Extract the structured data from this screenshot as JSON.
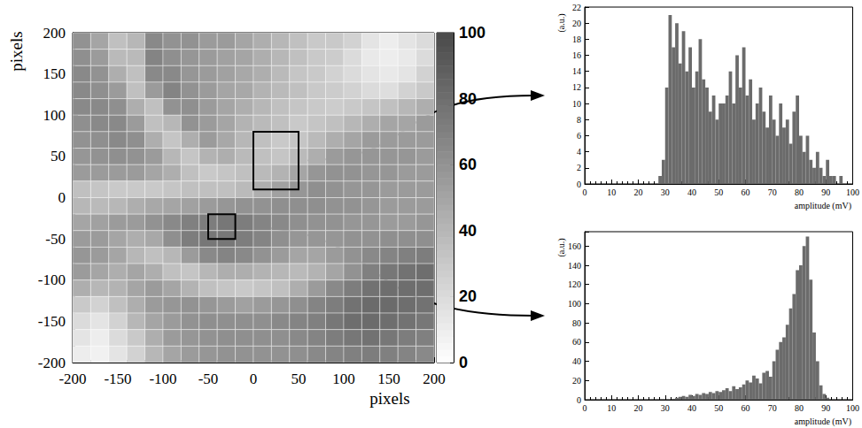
{
  "chart_data": [
    {
      "type": "heatmap",
      "x_label": "pixels",
      "y_label": "pixels",
      "xlim": [
        -200,
        200
      ],
      "xticks": [
        -200,
        -150,
        -100,
        -50,
        0,
        50,
        100,
        150,
        200
      ],
      "ylim": [
        -200,
        200
      ],
      "yticks": [
        -200,
        -150,
        -100,
        -50,
        0,
        50,
        100,
        150,
        200
      ],
      "colorbar_range": [
        0,
        100
      ],
      "colorbar_ticks": [
        0,
        20,
        40,
        60,
        80,
        100
      ],
      "x": [
        -190,
        -170,
        -150,
        -130,
        -110,
        -90,
        -70,
        -50,
        -30,
        -10,
        10,
        30,
        50,
        70,
        90,
        110,
        130,
        150,
        170,
        190
      ],
      "y": [
        190,
        170,
        150,
        130,
        110,
        90,
        70,
        50,
        30,
        10,
        -10,
        -30,
        -50,
        -70,
        -90,
        -110,
        -130,
        -150,
        -170,
        -190
      ],
      "z": [
        [
          60,
          50,
          35,
          40,
          65,
          60,
          60,
          55,
          55,
          50,
          45,
          40,
          35,
          30,
          30,
          25,
          15,
          10,
          15,
          20
        ],
        [
          62,
          55,
          38,
          38,
          68,
          62,
          58,
          55,
          52,
          50,
          45,
          40,
          35,
          30,
          28,
          20,
          12,
          10,
          12,
          20
        ],
        [
          65,
          60,
          45,
          35,
          65,
          65,
          58,
          55,
          52,
          48,
          45,
          38,
          32,
          30,
          25,
          20,
          15,
          12,
          15,
          25
        ],
        [
          65,
          62,
          55,
          35,
          55,
          68,
          60,
          55,
          50,
          48,
          42,
          38,
          35,
          30,
          28,
          25,
          20,
          18,
          25,
          30
        ],
        [
          65,
          65,
          62,
          45,
          35,
          60,
          62,
          55,
          50,
          45,
          40,
          35,
          32,
          30,
          28,
          30,
          32,
          35,
          40,
          45
        ],
        [
          62,
          65,
          65,
          55,
          35,
          40,
          60,
          55,
          50,
          42,
          38,
          35,
          30,
          32,
          35,
          40,
          45,
          50,
          50,
          55
        ],
        [
          60,
          62,
          65,
          62,
          45,
          32,
          45,
          55,
          48,
          40,
          35,
          30,
          32,
          38,
          45,
          50,
          55,
          55,
          55,
          55
        ],
        [
          58,
          60,
          62,
          60,
          55,
          40,
          32,
          42,
          45,
          38,
          35,
          32,
          38,
          45,
          55,
          58,
          58,
          58,
          58,
          55
        ],
        [
          55,
          55,
          55,
          55,
          50,
          45,
          35,
          30,
          32,
          35,
          38,
          42,
          50,
          58,
          60,
          60,
          58,
          58,
          55,
          55
        ],
        [
          35,
          32,
          30,
          30,
          30,
          32,
          35,
          35,
          35,
          38,
          45,
          52,
          58,
          62,
          60,
          58,
          58,
          55,
          55,
          55
        ],
        [
          40,
          38,
          40,
          45,
          48,
          50,
          52,
          55,
          58,
          60,
          60,
          62,
          62,
          62,
          60,
          60,
          58,
          55,
          55,
          55
        ],
        [
          50,
          52,
          55,
          55,
          60,
          65,
          70,
          72,
          75,
          72,
          68,
          65,
          62,
          60,
          60,
          58,
          58,
          55,
          55,
          58
        ],
        [
          55,
          55,
          50,
          45,
          48,
          62,
          72,
          75,
          75,
          72,
          68,
          62,
          58,
          58,
          58,
          60,
          60,
          62,
          62,
          62
        ],
        [
          58,
          55,
          50,
          40,
          35,
          40,
          55,
          65,
          68,
          65,
          60,
          55,
          50,
          50,
          55,
          60,
          65,
          68,
          70,
          72
        ],
        [
          55,
          50,
          45,
          50,
          45,
          35,
          32,
          40,
          45,
          45,
          42,
          40,
          38,
          42,
          50,
          60,
          70,
          75,
          78,
          80
        ],
        [
          45,
          40,
          42,
          50,
          55,
          50,
          42,
          35,
          32,
          30,
          32,
          35,
          45,
          55,
          65,
          72,
          78,
          80,
          80,
          80
        ],
        [
          30,
          25,
          35,
          45,
          55,
          58,
          60,
          58,
          55,
          52,
          55,
          58,
          62,
          68,
          72,
          78,
          82,
          82,
          80,
          78
        ],
        [
          20,
          15,
          25,
          40,
          50,
          55,
          60,
          62,
          62,
          62,
          62,
          65,
          68,
          70,
          75,
          80,
          82,
          80,
          78,
          75
        ],
        [
          15,
          10,
          20,
          30,
          45,
          55,
          58,
          60,
          62,
          62,
          62,
          62,
          65,
          68,
          72,
          75,
          78,
          75,
          72,
          70
        ],
        [
          10,
          8,
          15,
          25,
          40,
          50,
          55,
          58,
          60,
          60,
          60,
          60,
          62,
          65,
          68,
          70,
          72,
          70,
          68,
          65
        ]
      ],
      "regions": [
        {
          "x": [
            0,
            50
          ],
          "y": [
            10,
            80
          ]
        },
        {
          "x": [
            -50,
            -20
          ],
          "y": [
            -50,
            -20
          ]
        }
      ]
    },
    {
      "type": "histogram",
      "x_label": "amplitude (mV)",
      "y_label": "(a.u.)",
      "color": "#6b6b6b",
      "xlim": [
        0,
        100
      ],
      "xticks": [
        0,
        10,
        20,
        30,
        40,
        50,
        60,
        70,
        80,
        90,
        100
      ],
      "ylim": [
        0,
        22
      ],
      "yticks": [
        0,
        2,
        4,
        6,
        8,
        10,
        12,
        14,
        16,
        18,
        20,
        22
      ],
      "bins": [
        0,
        1.25,
        2.5,
        3.75,
        5,
        6.25,
        7.5,
        8.75,
        10,
        11.25,
        12.5,
        13.75,
        15,
        16.25,
        17.5,
        18.75,
        20,
        21.25,
        22.5,
        23.75,
        25,
        26.25,
        27.5,
        28.75,
        30,
        31.25,
        32.5,
        33.75,
        35,
        36.25,
        37.5,
        38.75,
        40,
        41.25,
        42.5,
        43.75,
        45,
        46.25,
        47.5,
        48.75,
        50,
        51.25,
        52.5,
        53.75,
        55,
        56.25,
        57.5,
        58.75,
        60,
        61.25,
        62.5,
        63.75,
        65,
        66.25,
        67.5,
        68.75,
        70,
        71.25,
        72.5,
        73.75,
        75,
        76.25,
        77.5,
        78.75,
        80,
        81.25,
        82.5,
        83.75,
        85,
        86.25,
        87.5,
        88.75,
        90,
        91.25,
        92.5,
        93.75,
        95,
        96.25,
        97.5,
        98.75,
        100
      ],
      "counts": [
        0,
        0,
        0,
        0,
        0,
        0,
        0,
        0,
        0,
        0,
        0,
        0,
        0,
        0,
        0,
        0,
        0,
        0,
        0,
        0,
        0,
        0,
        1,
        3,
        12,
        21,
        17,
        20,
        15,
        19,
        14,
        17,
        12,
        14,
        18,
        13,
        12,
        9,
        11,
        8,
        10,
        10,
        11,
        14,
        10,
        16,
        12,
        17,
        11,
        13,
        8,
        10,
        12,
        9,
        7,
        11,
        8,
        6,
        10,
        7,
        8,
        5,
        9,
        11,
        6,
        4,
        6,
        3,
        2,
        4,
        2,
        1,
        3,
        1,
        1,
        0,
        1,
        0,
        0,
        0
      ]
    },
    {
      "type": "histogram",
      "x_label": "amplitude (mV)",
      "y_label": "(a.u.)",
      "color": "#6b6b6b",
      "xlim": [
        0,
        100
      ],
      "xticks": [
        0,
        10,
        20,
        30,
        40,
        50,
        60,
        70,
        80,
        90,
        100
      ],
      "ylim": [
        0,
        175
      ],
      "yticks": [
        0,
        20,
        40,
        60,
        80,
        100,
        120,
        140,
        160
      ],
      "bins": [
        0,
        1.25,
        2.5,
        3.75,
        5,
        6.25,
        7.5,
        8.75,
        10,
        11.25,
        12.5,
        13.75,
        15,
        16.25,
        17.5,
        18.75,
        20,
        21.25,
        22.5,
        23.75,
        25,
        26.25,
        27.5,
        28.75,
        30,
        31.25,
        32.5,
        33.75,
        35,
        36.25,
        37.5,
        38.75,
        40,
        41.25,
        42.5,
        43.75,
        45,
        46.25,
        47.5,
        48.75,
        50,
        51.25,
        52.5,
        53.75,
        55,
        56.25,
        57.5,
        58.75,
        60,
        61.25,
        62.5,
        63.75,
        65,
        66.25,
        67.5,
        68.75,
        70,
        71.25,
        72.5,
        73.75,
        75,
        76.25,
        77.5,
        78.75,
        80,
        81.25,
        82.5,
        83.75,
        85,
        86.25,
        87.5,
        88.75,
        90,
        91.25,
        92.5,
        93.75,
        95,
        96.25,
        97.5,
        98.75,
        100
      ],
      "counts": [
        0,
        0,
        0,
        0,
        0,
        0,
        0,
        0,
        0,
        0,
        0,
        0,
        0,
        0,
        0,
        0,
        0,
        0,
        0,
        0,
        0,
        0,
        0,
        0,
        0,
        0,
        1,
        2,
        3,
        4,
        3,
        5,
        4,
        6,
        5,
        7,
        6,
        8,
        7,
        9,
        8,
        10,
        12,
        9,
        14,
        11,
        13,
        16,
        20,
        18,
        25,
        22,
        17,
        28,
        30,
        24,
        40,
        52,
        60,
        65,
        78,
        95,
        110,
        135,
        140,
        160,
        170,
        125,
        70,
        40,
        15,
        6,
        2,
        0,
        0,
        0,
        0,
        0,
        0,
        0
      ]
    }
  ]
}
